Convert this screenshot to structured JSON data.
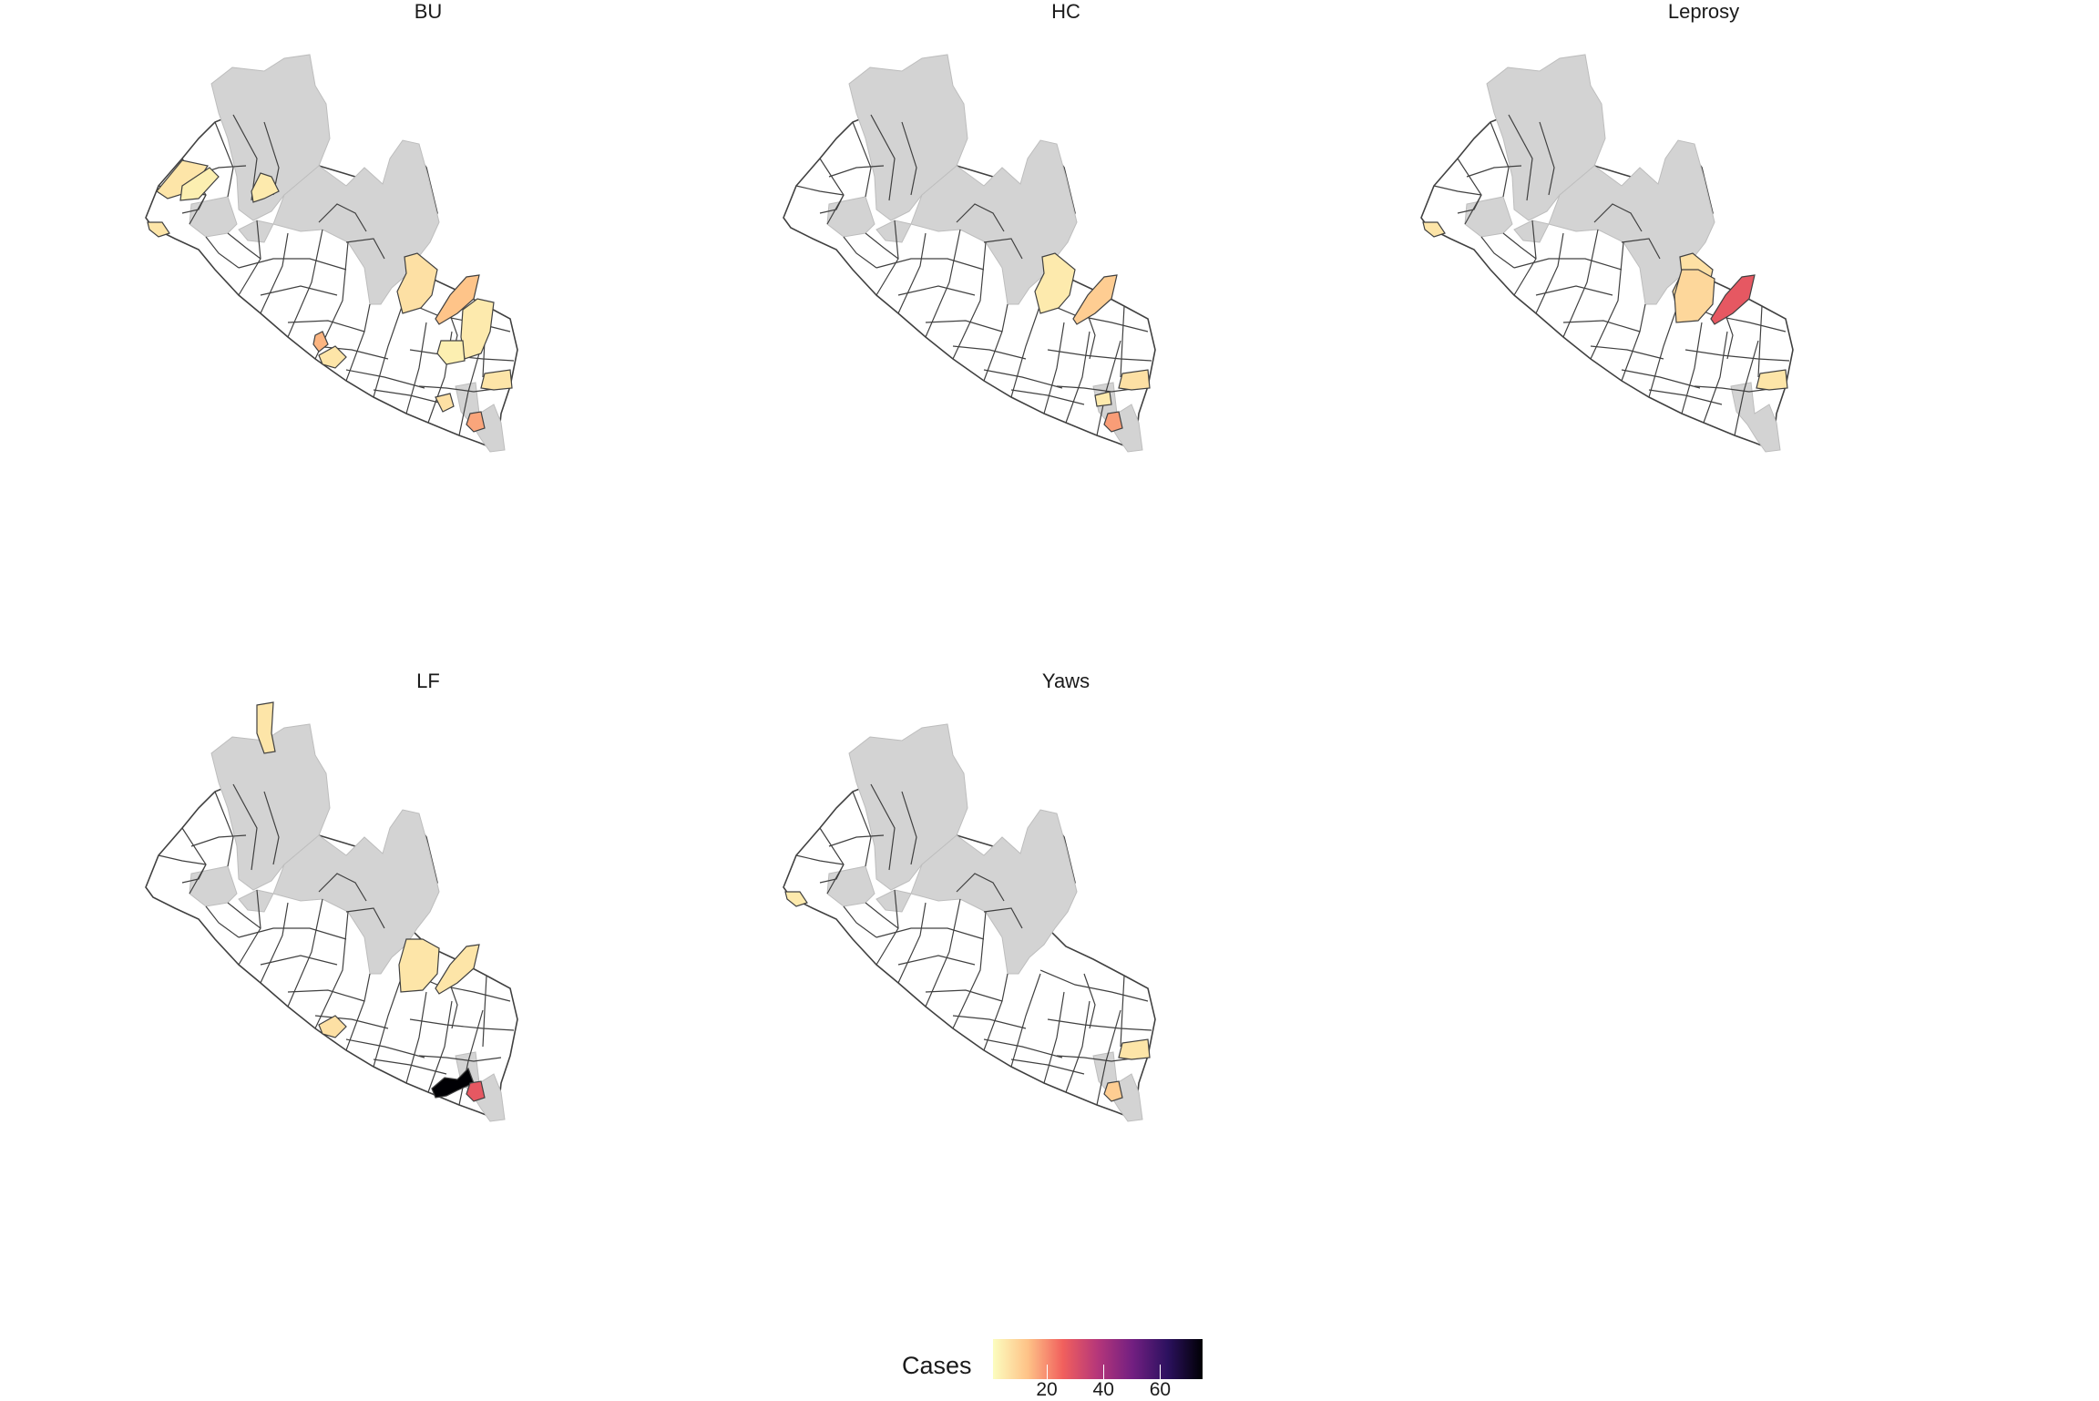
{
  "colors": {
    "no_data": "#d3d3d3",
    "zero": "#ffffff",
    "border": "#404040",
    "scale": [
      "#fcfdbf",
      "#fec287",
      "#f1605d",
      "#b5367a",
      "#721f81",
      "#2c115f",
      "#000004"
    ]
  },
  "panels": [
    {
      "title": "BU",
      "highlights": [
        {
          "district": "coastal-west-1",
          "cases": 6
        },
        {
          "district": "northwest-strip",
          "cases": 6
        },
        {
          "district": "center-north",
          "cases": 5
        },
        {
          "district": "east-a",
          "cases": 7
        },
        {
          "district": "east-b",
          "cases": 13
        },
        {
          "district": "east-c",
          "cases": 5
        },
        {
          "district": "east-d",
          "cases": 4
        },
        {
          "district": "coast-mid-1",
          "cases": 15
        },
        {
          "district": "coast-mid-2",
          "cases": 6
        },
        {
          "district": "southeast-1",
          "cases": 6
        },
        {
          "district": "southeast-2",
          "cases": 7
        },
        {
          "district": "southeast-3",
          "cases": 17
        },
        {
          "district": "coastal-west-2",
          "cases": 4
        }
      ]
    },
    {
      "title": "HC",
      "highlights": [
        {
          "district": "east-a",
          "cases": 5
        },
        {
          "district": "east-b",
          "cases": 11
        },
        {
          "district": "southeast-1",
          "cases": 7
        },
        {
          "district": "southeast-3",
          "cases": 18
        },
        {
          "district": "southeast-4",
          "cases": 5
        }
      ]
    },
    {
      "title": "Leprosy",
      "highlights": [
        {
          "district": "coastal-west-1",
          "cases": 6
        },
        {
          "district": "east-a",
          "cases": 7
        },
        {
          "district": "east-e",
          "cases": 9
        },
        {
          "district": "east-b",
          "cases": 28
        },
        {
          "district": "southeast-1",
          "cases": 6
        }
      ]
    },
    {
      "title": "LF",
      "highlights": [
        {
          "district": "west-inland",
          "cases": 6
        },
        {
          "district": "east-e",
          "cases": 6
        },
        {
          "district": "east-b",
          "cases": 6
        },
        {
          "district": "coast-mid-2",
          "cases": 7
        },
        {
          "district": "south-coast",
          "cases": 75
        },
        {
          "district": "southeast-3",
          "cases": 28
        }
      ]
    },
    {
      "title": "Yaws",
      "highlights": [
        {
          "district": "coastal-west-1",
          "cases": 5
        },
        {
          "district": "southeast-1",
          "cases": 6
        },
        {
          "district": "southeast-3",
          "cases": 11
        }
      ]
    }
  ],
  "legend": {
    "title": "Cases",
    "min": 1,
    "max": 75,
    "ticks": [
      20,
      40,
      60
    ]
  }
}
